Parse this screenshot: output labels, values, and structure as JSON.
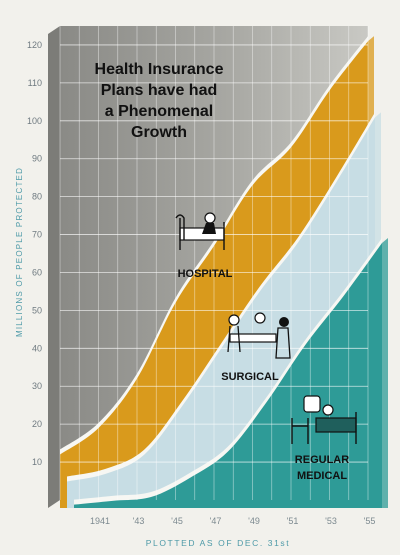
{
  "chart_data": {
    "type": "area",
    "title_lines": [
      "Health Insurance",
      "Plans have had",
      "a Phenomenal",
      "Growth"
    ],
    "ylabel": "MILLIONS OF PEOPLE PROTECTED",
    "xlabel": "PLOTTED AS OF DEC. 31st",
    "x": [
      1941,
      1943,
      1945,
      1947,
      1949,
      1951,
      1953,
      1955,
      1957
    ],
    "x_tick_labels": [
      "1941",
      "'43",
      "'45",
      "'47",
      "'49",
      "'51",
      "'53",
      "'55",
      "'57"
    ],
    "yticks": [
      10,
      20,
      30,
      40,
      50,
      60,
      70,
      80,
      90,
      100,
      110,
      120
    ],
    "ylim": [
      0,
      125
    ],
    "xlim": [
      1941,
      1957
    ],
    "series": [
      {
        "name": "HOSPITAL",
        "color": "#d99a1c",
        "values": [
          12,
          19,
          32,
          52,
          67,
          83,
          93,
          108,
          121
        ]
      },
      {
        "name": "SURGICAL",
        "color": "#c7dde4",
        "values": [
          7,
          9,
          14,
          27,
          42,
          57,
          70,
          86,
          103
        ]
      },
      {
        "name": "REGULAR MEDICAL",
        "color": "#2e9b97",
        "values": [
          3,
          4,
          5,
          10,
          17,
          30,
          45,
          58,
          72
        ]
      }
    ],
    "grid": true,
    "series_label_lines": {
      "HOSPITAL": [
        "HOSPITAL"
      ],
      "SURGICAL": [
        "SURGICAL"
      ],
      "REGULAR MEDICAL": [
        "REGULAR",
        "MEDICAL"
      ]
    },
    "icons": [
      "hospital-bed-icon",
      "surgery-team-icon",
      "doctor-visit-icon"
    ]
  }
}
